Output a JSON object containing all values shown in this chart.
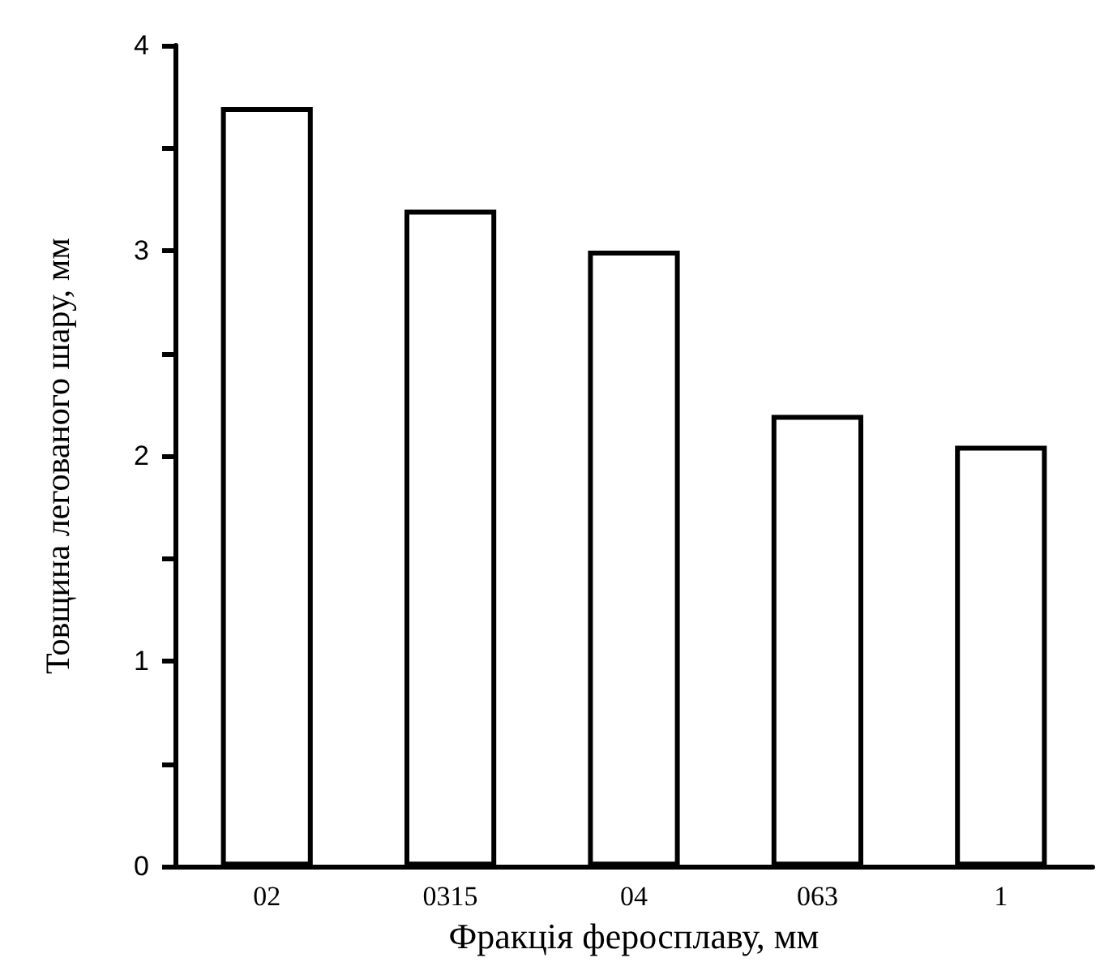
{
  "chart_data": {
    "type": "bar",
    "xlabel": "Фракція феросплаву, мм",
    "ylabel": "Товщина легованого шару, мм",
    "categories": [
      "02",
      "0315",
      "04",
      "063",
      "1"
    ],
    "values": [
      3.7,
      3.2,
      3.0,
      2.2,
      2.05
    ],
    "color": "#ffffff",
    "ylim": [
      0,
      4
    ],
    "yticks": [
      0,
      {
        "value": 0.5,
        "label": null
      },
      1,
      {
        "value": 1.5,
        "label": null
      },
      2,
      {
        "value": 2.5,
        "label": null
      },
      3,
      {
        "value": 3.5,
        "label": null
      },
      4
    ],
    "grid": false
  }
}
